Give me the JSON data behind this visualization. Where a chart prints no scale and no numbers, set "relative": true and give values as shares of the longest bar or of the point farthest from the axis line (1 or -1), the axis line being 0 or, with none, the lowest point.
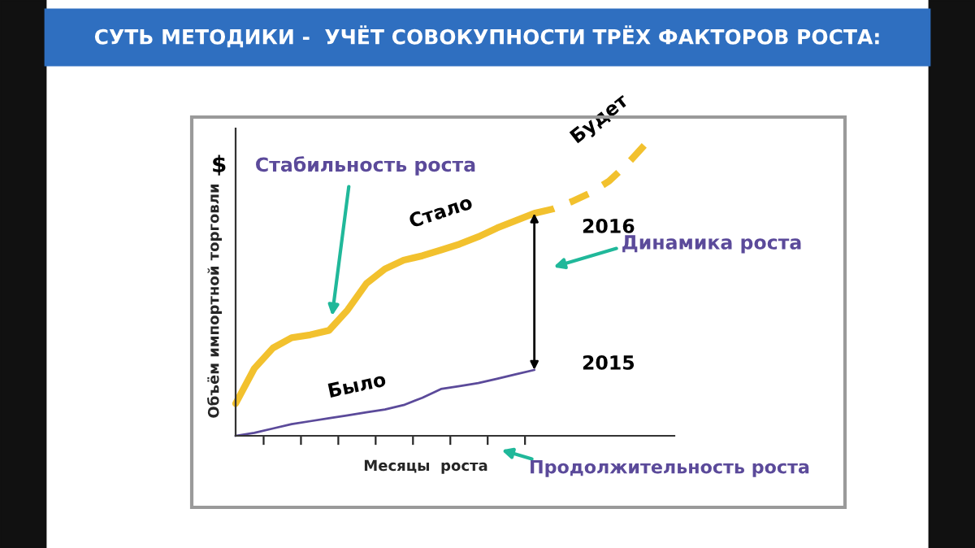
{
  "chart_data": {
    "type": "line",
    "title": "СУТЬ МЕТОДИКИ -  УЧЁТ СОВОКУПНОСТИ ТРЁХ ФАКТОРОВ РОСТА:",
    "xlabel": "Месяцы  роста",
    "ylabel": "Объём импортной торговли",
    "relative": true,
    "legend": false,
    "grid": false,
    "categories": [
      null,
      null,
      null,
      null,
      null,
      null,
      null,
      null,
      null,
      null,
      null,
      null,
      null,
      null,
      null,
      null,
      null,
      null,
      null,
      null,
      null,
      null,
      null,
      null
    ],
    "series": [
      {
        "name": "Стало",
        "color": "#f2c12e",
        "line_style": "solid",
        "values": [
          0.11,
          0.23,
          0.3,
          0.335,
          0.345,
          0.36,
          0.43,
          0.52,
          0.57,
          0.6,
          0.615,
          0.635,
          0.655,
          0.68,
          0.71,
          0.735,
          0.76,
          null,
          null,
          null,
          null,
          null,
          null,
          null
        ]
      },
      {
        "name": "Будет",
        "color": "#f2c12e",
        "line_style": "dashed",
        "values": [
          null,
          null,
          null,
          null,
          null,
          null,
          null,
          null,
          null,
          null,
          null,
          null,
          null,
          null,
          null,
          null,
          0.76,
          0.775,
          0.8,
          0.83,
          0.87,
          0.93,
          1.0,
          null
        ]
      },
      {
        "name": "Было",
        "color": "#5b4a9a",
        "line_style": "solid",
        "values": [
          0.0,
          0.01,
          0.025,
          0.04,
          0.05,
          0.06,
          0.07,
          0.08,
          0.09,
          0.105,
          0.13,
          0.16,
          0.17,
          0.18,
          0.195,
          0.21,
          0.225,
          null,
          null,
          null,
          null,
          null,
          null,
          null
        ]
      }
    ],
    "annotations": [
      "$",
      "2016",
      "2015",
      "Стабильность роста",
      "Динамика роста",
      "Продолжительность роста"
    ]
  }
}
